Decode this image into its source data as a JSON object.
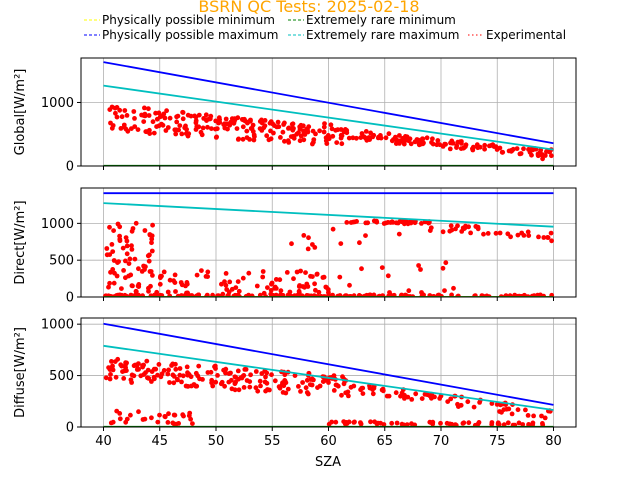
{
  "chart_data": {
    "type": "scatter",
    "title": "BSRN QC Tests: 2025-02-18",
    "title_color": "#ffa500",
    "xlabel": "SZA",
    "xlim": [
      38.0,
      82.0
    ],
    "xticks": [
      40,
      45,
      50,
      55,
      60,
      65,
      70,
      75,
      80
    ],
    "grid": true,
    "legend": {
      "placement": "top-above-plots",
      "entries": [
        {
          "label": "Physically possible minimum",
          "color": "#ffff00",
          "style": "dashed"
        },
        {
          "label": "Extremely rare minimum",
          "color": "#008000",
          "style": "dashed"
        },
        {
          "label": "Physically possible maximum",
          "color": "#0000ff",
          "style": "dashed"
        },
        {
          "label": "Extremely rare maximum",
          "color": "#00bfbf",
          "style": "dashed"
        },
        {
          "label": "Experimental",
          "color": "#ff0000",
          "style": "dotted"
        }
      ]
    },
    "panels": [
      {
        "ylabel": "Global[W/m²]",
        "ylim": [
          0,
          1700
        ],
        "yticks": [
          0,
          1000
        ],
        "series": [
          {
            "role": "pp_min",
            "color": "#ffff00",
            "x": [
              40,
              80
            ],
            "y": [
              0,
              0
            ]
          },
          {
            "role": "er_min",
            "color": "#008000",
            "x": [
              40,
              80
            ],
            "y": [
              3,
              3
            ]
          },
          {
            "role": "pp_max",
            "color": "#0000ff",
            "x": [
              40,
              80
            ],
            "y": [
              1635,
              358
            ]
          },
          {
            "role": "er_max",
            "color": "#00bfbf",
            "x": [
              40,
              80
            ],
            "y": [
              1265,
              258
            ]
          }
        ],
        "experimental": {
          "color": "#ff0000",
          "bands": [
            {
              "x0": 40.2,
              "x1": 80,
              "y0": 920,
              "y1": 160,
              "spread": 70,
              "n": 130
            },
            {
              "x0": 40.5,
              "x1": 62,
              "y0": 720,
              "y1": 470,
              "spread": 170,
              "n": 160
            },
            {
              "x0": 62,
              "x1": 80,
              "y0": 470,
              "y1": 200,
              "spread": 60,
              "n": 60
            }
          ]
        }
      },
      {
        "ylabel": "Direct[W/m²]",
        "ylim": [
          0,
          1480
        ],
        "yticks": [
          0,
          500,
          1000
        ],
        "series": [
          {
            "role": "pp_min",
            "color": "#ffff00",
            "x": [
              40,
              80
            ],
            "y": [
              0,
              0
            ]
          },
          {
            "role": "er_min",
            "color": "#008000",
            "x": [
              40,
              80
            ],
            "y": [
              0,
              0
            ]
          },
          {
            "role": "pp_max",
            "color": "#0000ff",
            "x": [
              40,
              80
            ],
            "y": [
              1410,
              1410
            ]
          },
          {
            "role": "er_max",
            "color": "#00bfbf",
            "x": [
              40,
              80
            ],
            "y": [
              1275,
              955
            ]
          }
        ],
        "experimental": {
          "color": "#ff0000",
          "bands": [
            {
              "x0": 40.1,
              "x1": 80,
              "y0": 15,
              "y1": 15,
              "spread": 15,
              "n": 180
            },
            {
              "x0": 40.2,
              "x1": 44.5,
              "y0": 550,
              "y1": 550,
              "spread": 480,
              "n": 70
            },
            {
              "x0": 44.5,
              "x1": 60,
              "y0": 180,
              "y1": 180,
              "spread": 180,
              "n": 90
            },
            {
              "x0": 61.5,
              "x1": 69,
              "y0": 1020,
              "y1": 1010,
              "spread": 20,
              "n": 40
            },
            {
              "x0": 69,
              "x1": 80,
              "y0": 960,
              "y1": 820,
              "spread": 60,
              "n": 35
            },
            {
              "x0": 56,
              "x1": 72,
              "y0": 500,
              "y1": 500,
              "spread": 450,
              "n": 30
            }
          ]
        }
      },
      {
        "ylabel": "Diffuse[W/m²]",
        "ylim": [
          0,
          1060
        ],
        "yticks": [
          0,
          500,
          1000
        ],
        "series": [
          {
            "role": "pp_min",
            "color": "#ffff00",
            "x": [
              40,
              80
            ],
            "y": [
              0,
              0
            ]
          },
          {
            "role": "er_min",
            "color": "#008000",
            "x": [
              40,
              80
            ],
            "y": [
              2,
              2
            ]
          },
          {
            "role": "pp_max",
            "color": "#0000ff",
            "x": [
              40,
              80
            ],
            "y": [
              1005,
              215
            ]
          },
          {
            "role": "er_max",
            "color": "#00bfbf",
            "x": [
              40,
              80
            ],
            "y": [
              790,
              165
            ]
          }
        ],
        "experimental": {
          "color": "#ff0000",
          "bands": [
            {
              "x0": 40.2,
              "x1": 62,
              "y0": 560,
              "y1": 390,
              "spread": 110,
              "n": 200
            },
            {
              "x0": 62,
              "x1": 80,
              "y0": 390,
              "y1": 120,
              "spread": 50,
              "n": 70
            },
            {
              "x0": 60,
              "x1": 80,
              "y0": 40,
              "y1": 25,
              "spread": 15,
              "n": 60
            },
            {
              "x0": 40.2,
              "x1": 48,
              "y0": 100,
              "y1": 80,
              "spread": 60,
              "n": 30
            }
          ]
        }
      }
    ]
  }
}
